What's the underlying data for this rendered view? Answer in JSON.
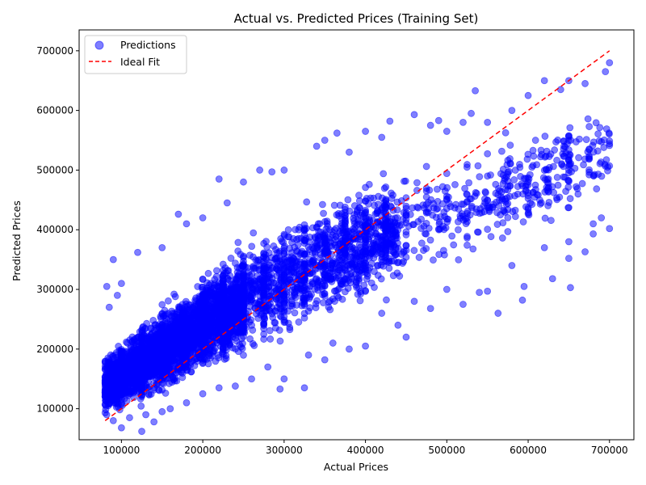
{
  "chart_data": {
    "type": "scatter",
    "title": "Actual vs. Predicted Prices (Training Set)",
    "xlabel": "Actual Prices",
    "ylabel": "Predicted Prices",
    "xlim": [
      48000,
      730000
    ],
    "ylim": [
      48000,
      735000
    ],
    "xticks": [
      100000,
      200000,
      300000,
      400000,
      500000,
      600000,
      700000
    ],
    "yticks": [
      100000,
      200000,
      300000,
      400000,
      500000,
      600000,
      700000
    ],
    "grid": false,
    "legend_position": "top-left",
    "series": [
      {
        "name": "Predictions",
        "kind": "scatter",
        "color": "#0000ff",
        "fill_opacity": 0.5,
        "points": [
          [
            80000,
            120000
          ],
          [
            82000,
            305000
          ],
          [
            85000,
            270000
          ],
          [
            90000,
            350000
          ],
          [
            95000,
            290000
          ],
          [
            100000,
            68000
          ],
          [
            100000,
            310000
          ],
          [
            120000,
            362000
          ],
          [
            125000,
            62000
          ],
          [
            140000,
            78000
          ],
          [
            150000,
            370000
          ],
          [
            170000,
            426000
          ],
          [
            180000,
            410000
          ],
          [
            200000,
            420000
          ],
          [
            220000,
            485000
          ],
          [
            230000,
            445000
          ],
          [
            250000,
            480000
          ],
          [
            270000,
            500000
          ],
          [
            285000,
            497000
          ],
          [
            300000,
            500000
          ],
          [
            295000,
            133000
          ],
          [
            325000,
            135000
          ],
          [
            340000,
            540000
          ],
          [
            350000,
            550000
          ],
          [
            365000,
            562000
          ],
          [
            380000,
            530000
          ],
          [
            400000,
            565000
          ],
          [
            420000,
            555000
          ],
          [
            430000,
            582000
          ],
          [
            460000,
            593000
          ],
          [
            480000,
            575000
          ],
          [
            490000,
            583000
          ],
          [
            500000,
            565000
          ],
          [
            520000,
            580000
          ],
          [
            530000,
            595000
          ],
          [
            535000,
            633000
          ],
          [
            550000,
            580000
          ],
          [
            580000,
            600000
          ],
          [
            600000,
            625000
          ],
          [
            620000,
            650000
          ],
          [
            640000,
            635000
          ],
          [
            650000,
            650000
          ],
          [
            670000,
            645000
          ],
          [
            695000,
            665000
          ],
          [
            700000,
            680000
          ],
          [
            350000,
            182000
          ],
          [
            380000,
            200000
          ],
          [
            400000,
            205000
          ],
          [
            440000,
            240000
          ],
          [
            450000,
            220000
          ],
          [
            460000,
            280000
          ],
          [
            480000,
            268000
          ],
          [
            520000,
            275000
          ],
          [
            540000,
            295000
          ],
          [
            550000,
            297000
          ],
          [
            563000,
            260000
          ],
          [
            593000,
            282000
          ],
          [
            595000,
            305000
          ],
          [
            630000,
            318000
          ],
          [
            652000,
            303000
          ],
          [
            670000,
            363000
          ],
          [
            650000,
            352000
          ],
          [
            680000,
            393000
          ],
          [
            700000,
            402000
          ],
          [
            680000,
            410000
          ],
          [
            300000,
            150000
          ],
          [
            280000,
            170000
          ],
          [
            260000,
            150000
          ],
          [
            240000,
            138000
          ],
          [
            220000,
            135000
          ],
          [
            200000,
            125000
          ],
          [
            180000,
            110000
          ],
          [
            160000,
            100000
          ],
          [
            150000,
            95000
          ],
          [
            130000,
            90000
          ],
          [
            110000,
            85000
          ],
          [
            90000,
            80000
          ],
          [
            330000,
            190000
          ],
          [
            360000,
            210000
          ],
          [
            420000,
            260000
          ],
          [
            500000,
            300000
          ],
          [
            580000,
            340000
          ],
          [
            620000,
            370000
          ],
          [
            650000,
            380000
          ],
          [
            690000,
            420000
          ]
        ]
      },
      {
        "name": "Ideal Fit",
        "kind": "line",
        "color": "#ff0000",
        "dash": "dashed",
        "points": [
          [
            80000,
            80000
          ],
          [
            700000,
            700000
          ]
        ]
      }
    ],
    "dense_cloud": {
      "x_range": [
        80000,
        700000
      ],
      "y_min_of_x": [
        [
          80000,
          85000
        ],
        [
          300000,
          140000
        ],
        [
          500000,
          260000
        ],
        [
          700000,
          400000
        ]
      ],
      "y_max_of_x": [
        [
          80000,
          250000
        ],
        [
          300000,
          460000
        ],
        [
          500000,
          550000
        ],
        [
          700000,
          650000
        ]
      ],
      "y_center_of_x": [
        [
          80000,
          140000
        ],
        [
          200000,
          240000
        ],
        [
          300000,
          320000
        ],
        [
          400000,
          380000
        ],
        [
          500000,
          430000
        ],
        [
          600000,
          480000
        ],
        [
          700000,
          540000
        ]
      ]
    }
  }
}
